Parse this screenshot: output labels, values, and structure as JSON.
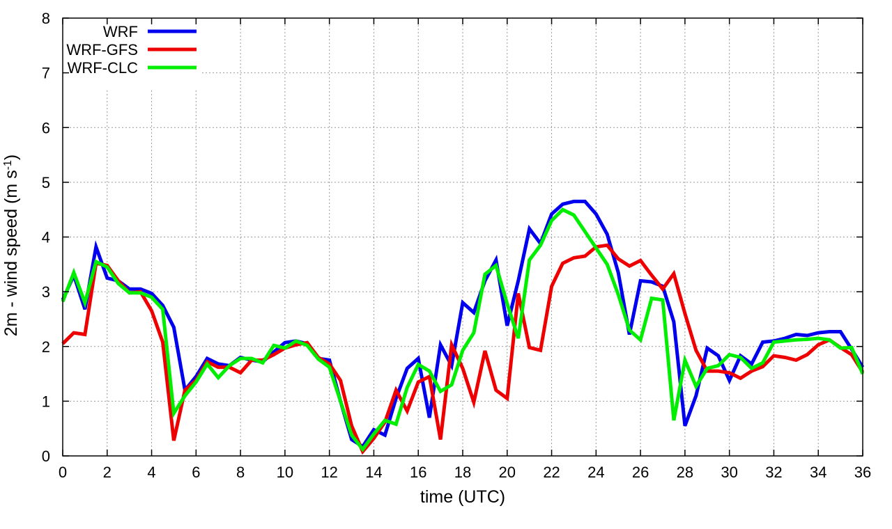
{
  "chart_data": {
    "type": "line",
    "xlabel": "time (UTC)",
    "ylabel_main": "2m - wind speed  (m s",
    "ylabel_sup": "-1",
    "ylabel_close": ")",
    "xlim": [
      0,
      36
    ],
    "ylim": [
      0,
      8
    ],
    "xticks": [
      0,
      2,
      4,
      6,
      8,
      10,
      12,
      14,
      16,
      18,
      20,
      22,
      24,
      26,
      28,
      30,
      32,
      34,
      36
    ],
    "xtick_labels": [
      "0",
      "2",
      "4",
      "6",
      "8",
      "10",
      "12",
      "14",
      "16",
      "18",
      "20",
      "22",
      "24",
      "26",
      "28",
      "30",
      "32",
      "34",
      "36"
    ],
    "yticks": [
      0,
      1,
      2,
      3,
      4,
      5,
      6,
      7,
      8
    ],
    "ytick_labels": [
      "0",
      "1",
      "2",
      "3",
      "4",
      "5",
      "6",
      "7",
      "8"
    ],
    "grid": true,
    "legend_position": "top-left",
    "x": [
      0,
      0.5,
      1,
      1.5,
      2,
      2.5,
      3,
      3.5,
      4,
      4.5,
      5,
      5.5,
      6,
      6.5,
      7,
      7.5,
      8,
      8.5,
      9,
      9.5,
      10,
      10.5,
      11,
      11.5,
      12,
      12.5,
      13,
      13.5,
      14,
      14.5,
      15,
      15.5,
      16,
      16.5,
      17,
      17.5,
      18,
      18.5,
      19,
      19.5,
      20,
      20.5,
      21,
      21.5,
      22,
      22.5,
      23,
      23.5,
      24,
      24.5,
      25,
      25.5,
      26,
      26.5,
      27,
      27.5,
      28,
      28.5,
      29,
      29.5,
      30,
      30.5,
      31,
      31.5,
      32,
      32.5,
      33,
      33.5,
      34,
      34.5,
      35,
      35.5,
      36
    ],
    "series": [
      {
        "name": "WRF",
        "color": "#0000ee",
        "values": [
          2.85,
          3.3,
          2.68,
          3.82,
          3.25,
          3.2,
          3.05,
          3.05,
          2.97,
          2.75,
          2.35,
          1.2,
          1.45,
          1.78,
          1.68,
          1.65,
          1.8,
          1.75,
          1.72,
          1.9,
          2.07,
          2.1,
          2.05,
          1.78,
          1.75,
          1.0,
          0.3,
          0.17,
          0.48,
          0.38,
          1.05,
          1.6,
          1.78,
          0.7,
          2.03,
          1.65,
          2.8,
          2.62,
          3.2,
          3.58,
          2.38,
          3.2,
          4.15,
          3.88,
          4.42,
          4.6,
          4.65,
          4.65,
          4.42,
          4.05,
          3.35,
          2.22,
          3.2,
          3.18,
          3.1,
          2.45,
          0.55,
          1.1,
          1.97,
          1.83,
          1.38,
          1.83,
          1.68,
          2.08,
          2.1,
          2.15,
          2.22,
          2.2,
          2.25,
          2.27,
          2.27,
          1.95,
          1.62
        ]
      },
      {
        "name": "WRF-GFS",
        "color": "#ee0000",
        "values": [
          2.05,
          2.25,
          2.22,
          3.52,
          3.48,
          3.2,
          2.98,
          3.0,
          2.65,
          2.08,
          0.28,
          1.2,
          1.38,
          1.72,
          1.62,
          1.62,
          1.52,
          1.75,
          1.75,
          1.85,
          1.97,
          2.03,
          2.07,
          1.8,
          1.68,
          1.38,
          0.55,
          0.08,
          0.32,
          0.62,
          1.2,
          0.82,
          1.35,
          1.45,
          0.3,
          2.03,
          1.6,
          0.98,
          1.92,
          1.2,
          1.05,
          2.97,
          1.98,
          1.93,
          3.1,
          3.52,
          3.62,
          3.65,
          3.82,
          3.85,
          3.6,
          3.47,
          3.57,
          3.3,
          3.05,
          3.33,
          2.6,
          1.93,
          1.55,
          1.55,
          1.52,
          1.42,
          1.55,
          1.63,
          1.83,
          1.8,
          1.75,
          1.85,
          2.03,
          2.12,
          1.98,
          1.85,
          1.53
        ]
      },
      {
        "name": "WRF-CLC",
        "color": "#00ee00",
        "values": [
          2.82,
          3.35,
          2.8,
          3.55,
          3.45,
          3.15,
          2.98,
          2.98,
          2.9,
          2.68,
          0.78,
          1.1,
          1.35,
          1.68,
          1.43,
          1.65,
          1.78,
          1.78,
          1.7,
          2.02,
          1.97,
          2.1,
          2.02,
          1.77,
          1.62,
          1.0,
          0.38,
          0.12,
          0.4,
          0.65,
          0.58,
          1.25,
          1.67,
          1.55,
          1.18,
          1.3,
          1.93,
          2.25,
          3.32,
          3.48,
          2.78,
          2.15,
          3.58,
          3.85,
          4.3,
          4.5,
          4.4,
          4.1,
          3.8,
          3.5,
          2.95,
          2.3,
          2.12,
          2.88,
          2.85,
          0.65,
          1.75,
          1.27,
          1.6,
          1.65,
          1.85,
          1.8,
          1.6,
          1.7,
          2.08,
          2.1,
          2.12,
          2.13,
          2.15,
          2.12,
          1.97,
          1.98,
          1.5
        ]
      }
    ]
  }
}
